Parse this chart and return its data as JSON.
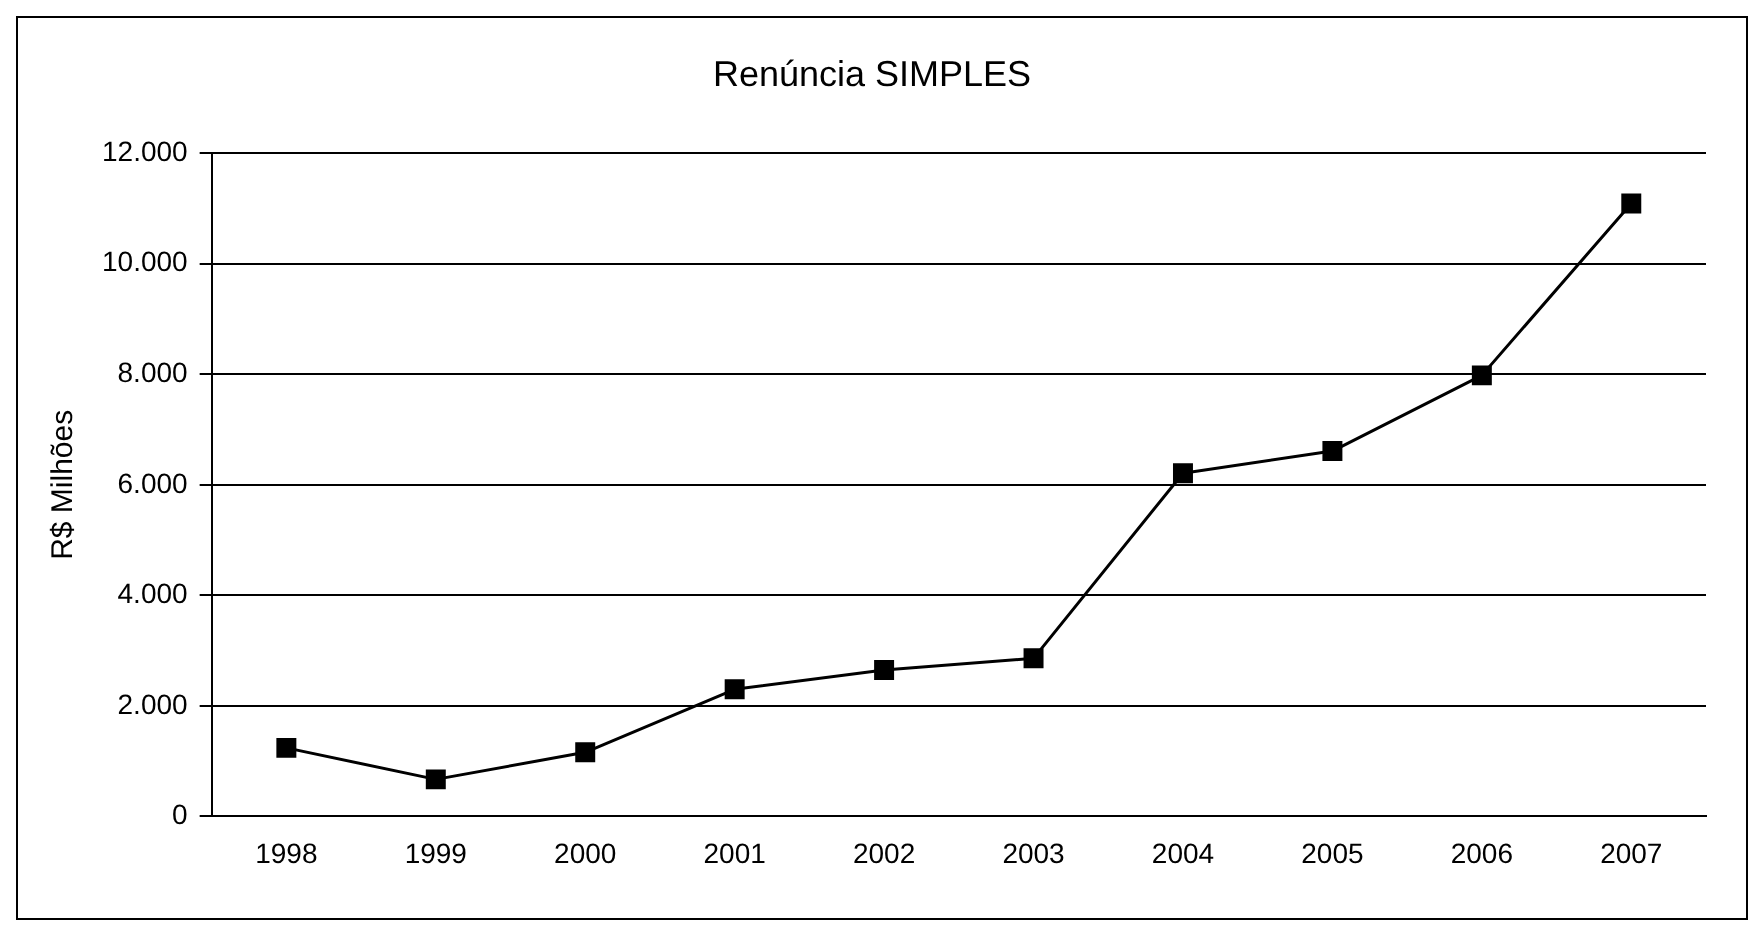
{
  "chart_data": {
    "type": "line",
    "title": "Renúncia SIMPLES",
    "ylabel": "R$ Milhões",
    "categories": [
      "1998",
      "1999",
      "2000",
      "2001",
      "2002",
      "2003",
      "2004",
      "2005",
      "2006",
      "2007"
    ],
    "series": [
      {
        "color": "#000000",
        "values": [
          1240,
          670,
          1160,
          2300,
          2650,
          2860,
          6210,
          6610,
          7980,
          11090
        ]
      }
    ],
    "ylim": [
      0,
      12000
    ],
    "yticks": [
      0,
      {
        "value": 2000,
        "label": "2.000"
      },
      {
        "value": 4000,
        "label": "4.000"
      },
      {
        "value": 6000,
        "label": "6.000"
      },
      {
        "value": 8000,
        "label": "8.000"
      },
      {
        "value": 10000,
        "label": "10.000"
      },
      {
        "value": 12000,
        "label": "12.000"
      }
    ],
    "grid": "y",
    "legend": false,
    "marker": "square",
    "line_style": "solid"
  }
}
